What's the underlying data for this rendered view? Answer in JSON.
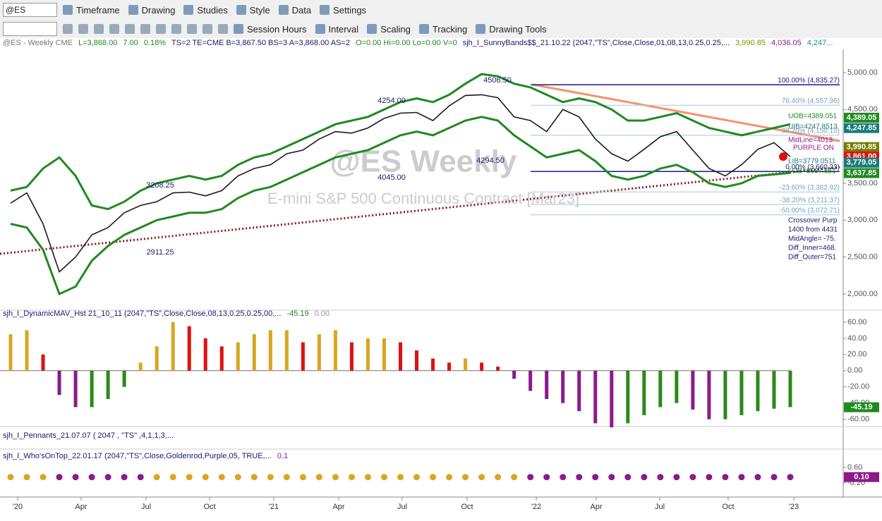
{
  "toolbar": {
    "symbol": "@ES",
    "row1": [
      "Timeframe",
      "Drawing",
      "Studies",
      "Style",
      "Data",
      "Settings"
    ],
    "row2": [
      "Session Hours",
      "Interval",
      "Scaling",
      "Tracking",
      "Drawing Tools"
    ]
  },
  "status": [
    {
      "text": "@ES - Weekly  CME",
      "color": "#777777"
    },
    {
      "text": "L=3,868.00",
      "color": "#1a8a1a"
    },
    {
      "text": "7.00",
      "color": "#1a8a1a"
    },
    {
      "text": "0.18%",
      "color": "#1a8a1a"
    },
    {
      "text": "TS=2  TE=CME  B=3,867.50  BS=3  A=3,868.00  AS=2",
      "color": "#1a1a6e"
    },
    {
      "text": "O=0.00  Hi=0.00  Lo=0.00  V=0",
      "color": "#1a8a1a"
    },
    {
      "text": "sjh_I_SunnyBands$$_21.10.22 (2047,\"TS\",Close,Close,01,08,13,0.25,0.25,...",
      "color": "#1a1a6e"
    },
    {
      "text": "3,990.85",
      "color": "#8a8a00"
    },
    {
      "text": "4,036.05",
      "color": "#8b1a8b"
    },
    {
      "text": "4,247...",
      "color": "#1a8a8a"
    }
  ],
  "chart_data": [
    {
      "type": "line",
      "watermark": "@ES Weekly",
      "watermark_sub": "E-mini S&P 500 Continuous Contract [Mar23]",
      "values": [
        3230,
        3370,
        2950,
        2300,
        2500,
        2800,
        2900,
        3100,
        3200,
        3250,
        3370,
        3380,
        3330,
        3400,
        3600,
        3700,
        3750,
        3900,
        3950,
        4100,
        4200,
        4180,
        4250,
        4380,
        4450,
        4460,
        4350,
        4550,
        4690,
        4700,
        4660,
        4400,
        4350,
        4200,
        4500,
        4400,
        4100,
        3900,
        3800,
        3960,
        4130,
        4200,
        3950,
        3700,
        3600,
        3750,
        3960,
        4050,
        3861
      ],
      "upper_band": [
        3400,
        3450,
        3700,
        3850,
        3600,
        3200,
        3150,
        3250,
        3400,
        3500,
        3550,
        3600,
        3550,
        3600,
        3750,
        3850,
        3900,
        4000,
        4100,
        4200,
        4300,
        4350,
        4400,
        4500,
        4600,
        4650,
        4600,
        4700,
        4850,
        4980,
        4950,
        4850,
        4800,
        4700,
        4600,
        4650,
        4600,
        4500,
        4350,
        4350,
        4400,
        4450,
        4350,
        4250,
        4200,
        4150,
        4200,
        4250,
        4300
      ],
      "lower_band": [
        2950,
        2900,
        2600,
        2000,
        2100,
        2450,
        2650,
        2800,
        2900,
        3000,
        3050,
        3100,
        3100,
        3150,
        3300,
        3400,
        3450,
        3550,
        3650,
        3750,
        3850,
        3900,
        3950,
        4050,
        4150,
        4200,
        4150,
        4250,
        4350,
        4400,
        4350,
        4150,
        4000,
        3850,
        3900,
        3950,
        3800,
        3600,
        3550,
        3600,
        3700,
        3750,
        3650,
        3500,
        3450,
        3500,
        3600,
        3620,
        3640
      ],
      "ylim": [
        1780,
        5315
      ],
      "yticks": [
        {
          "value": 5000,
          "label": "5,000.00"
        },
        {
          "value": 4500,
          "label": "4,500.00"
        },
        {
          "value": 4000,
          "label": "4,000.00"
        },
        {
          "value": 3500,
          "label": "3,500.00"
        },
        {
          "value": 3000,
          "label": "3,000.00"
        },
        {
          "value": 2500,
          "label": "2,500.00"
        },
        {
          "value": 2000,
          "label": "2,000.00"
        }
      ],
      "fib_levels": [
        {
          "value": 4835.27,
          "label": "100.00% (4,835.27)"
        },
        {
          "value": 4557.96,
          "label": "76.40% (4,557.96)"
        },
        {
          "value": 4150.1,
          "label": "38.20% (4,150.10)"
        },
        {
          "value": 3660.23,
          "label": "0.00% (3,660.23)"
        },
        {
          "value": 3382.92,
          "label": "-23.60% (3,382.92)"
        },
        {
          "value": 3211.37,
          "label": "-38.20% (3,211.37)"
        },
        {
          "value": 3072.71,
          "label": "-50.00% (3,072.71)"
        }
      ],
      "price_notes": [
        "4506.50",
        "4254.00",
        "3208.25",
        "2911.25",
        "4294.50",
        "4045.00"
      ],
      "band_notes": [
        "UOB=4389.051",
        "UIB=4247.8513",
        "MidLine=4013.",
        "PURPLE ON",
        "LIB=3779.0511",
        "LOB=3637.851"
      ],
      "info_lines": [
        "Crossover Purp",
        "1400 from 4431",
        "MidAngle= -75.",
        "Diff_Inner=468.",
        "Diff_Outer=751"
      ],
      "flags": [
        {
          "value": 4389.05,
          "label": "4,389.05",
          "color": "#1f8a1f"
        },
        {
          "value": 4247.85,
          "label": "4,247.85",
          "color": "#1a7a7a"
        },
        {
          "value": 3990.85,
          "label": "3,990.85",
          "color": "#7a7a00"
        },
        {
          "value": 3861.0,
          "label": "3,861.00",
          "color": "#e01010"
        },
        {
          "value": 3779.05,
          "label": "3,779.05",
          "color": "#1a7a7a"
        },
        {
          "value": 3637.85,
          "label": "3,637.85",
          "color": "#1f8a1f"
        }
      ]
    },
    {
      "type": "histogram",
      "title": "sjh_I_DynamicMAV_Hst 21_10_11 (2047,\"TS\",Close,Close,08,13,0.25,0.25,00,...",
      "last": -45.19,
      "last_label": "-45.19",
      "zero_label": "0.00",
      "values": [
        45,
        50,
        20,
        -30,
        -45,
        -45,
        -35,
        -20,
        10,
        30,
        60,
        55,
        40,
        30,
        35,
        45,
        50,
        50,
        35,
        45,
        50,
        35,
        40,
        40,
        35,
        25,
        15,
        10,
        15,
        10,
        5,
        -10,
        -25,
        -35,
        -40,
        -50,
        -65,
        -70,
        -65,
        -55,
        -45,
        -40,
        -48,
        -60,
        -60,
        -55,
        -50,
        -47,
        -45
      ],
      "ylim": [
        -69,
        66
      ],
      "yticks": [
        {
          "value": 60,
          "label": "60.00"
        },
        {
          "value": 40,
          "label": "40.00"
        },
        {
          "value": 20,
          "label": "20.00"
        },
        {
          "value": 0,
          "label": "0.00"
        },
        {
          "value": -20,
          "label": "-20.00"
        },
        {
          "value": -40,
          "label": "-40.00"
        },
        {
          "value": -60,
          "label": "-60.00"
        }
      ],
      "colors": {
        "up_rising": "#daa520",
        "up_falling": "#e01010",
        "down_falling": "#8b1a8b",
        "down_rising": "#2a8a1a"
      }
    },
    {
      "type": "dots",
      "pennants_title": "sjh_I_Pennants_21.07.07 ( 2047 , \"TS\" ,4,1,1,3,...",
      "title": "sjh_I_Who'sOnTop_22.01.17 (2047,\"TS\",Close,Goldenrod,Purple,05, TRUE,...",
      "value": 0.1,
      "value_label": "0.10",
      "ylim": [
        -0.93,
        0.89
      ],
      "yticks": [
        {
          "value": 0.6,
          "label": "0.60"
        },
        {
          "value": -0.2,
          "label": "-0.20"
        }
      ],
      "dot_colors": [
        "#daa520",
        "#daa520",
        "#daa520",
        "#8b1a8b",
        "#8b1a8b",
        "#8b1a8b",
        "#8b1a8b",
        "#8b1a8b",
        "#8b1a8b",
        "#daa520",
        "#daa520",
        "#daa520",
        "#daa520",
        "#daa520",
        "#daa520",
        "#daa520",
        "#daa520",
        "#daa520",
        "#daa520",
        "#daa520",
        "#daa520",
        "#daa520",
        "#daa520",
        "#daa520",
        "#daa520",
        "#daa520",
        "#daa520",
        "#daa520",
        "#daa520",
        "#daa520",
        "#daa520",
        "#daa520",
        "#8b1a8b",
        "#8b1a8b",
        "#8b1a8b",
        "#8b1a8b",
        "#8b1a8b",
        "#8b1a8b",
        "#8b1a8b",
        "#8b1a8b",
        "#8b1a8b",
        "#8b1a8b",
        "#8b1a8b",
        "#8b1a8b",
        "#8b1a8b",
        "#8b1a8b",
        "#8b1a8b",
        "#8b1a8b",
        "#8b1a8b"
      ]
    }
  ],
  "x_labels": [
    "'20",
    "Apr",
    "Jul",
    "Oct",
    "'21",
    "Apr",
    "Jul",
    "Oct",
    "'22",
    "Apr",
    "Jul",
    "Oct",
    "'23"
  ]
}
